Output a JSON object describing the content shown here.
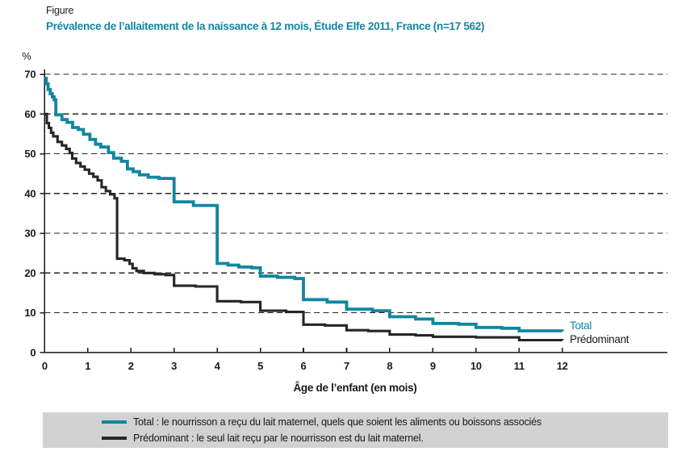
{
  "page": {
    "figure_label": "Figure",
    "title": "Prévalence de l’allaitement de la naissance à 12 mois, Étude Elfe 2011, France (n=17 562)"
  },
  "colors": {
    "accent": "#1186a1",
    "line_dark": "#262626",
    "grid": "#262626",
    "axis": "#1a1a1a",
    "legend_bg": "#d2d2d2"
  },
  "chart_data": {
    "type": "line",
    "step": "after",
    "title": "Prévalence de l’allaitement de la naissance à 12 mois, Étude Elfe 2011, France (n=17 562)",
    "xlabel": "Âge de l’enfant (en mois)",
    "ylabel": "%",
    "xlim": [
      0,
      12.4
    ],
    "ylim": [
      0,
      70
    ],
    "x_ticks": [
      0,
      1,
      2,
      3,
      4,
      5,
      6,
      7,
      8,
      9,
      10,
      11,
      12
    ],
    "y_ticks": [
      0,
      10,
      20,
      30,
      40,
      50,
      60,
      70
    ],
    "grid": "horizontal-dashed",
    "legend_position": "bottom-box",
    "series": [
      {
        "name": "Total",
        "color": "#1186a1",
        "width": 3.8,
        "points": [
          [
            0,
            69
          ],
          [
            0.04,
            67.6
          ],
          [
            0.08,
            66.2
          ],
          [
            0.13,
            65.1
          ],
          [
            0.18,
            64.3
          ],
          [
            0.22,
            63.6
          ],
          [
            0.26,
            59.8
          ],
          [
            0.4,
            58.6
          ],
          [
            0.52,
            57.9
          ],
          [
            0.65,
            56.6
          ],
          [
            0.78,
            56.1
          ],
          [
            0.9,
            54.9
          ],
          [
            1.05,
            53.6
          ],
          [
            1.18,
            52.4
          ],
          [
            1.3,
            51.7
          ],
          [
            1.48,
            50.3
          ],
          [
            1.6,
            48.9
          ],
          [
            1.78,
            48.1
          ],
          [
            1.92,
            46.2
          ],
          [
            2.05,
            45.5
          ],
          [
            2.2,
            44.7
          ],
          [
            2.4,
            44.1
          ],
          [
            2.65,
            43.8
          ],
          [
            3,
            37.9
          ],
          [
            3.45,
            37
          ],
          [
            4,
            22.4
          ],
          [
            4.25,
            22
          ],
          [
            4.5,
            21.5
          ],
          [
            4.8,
            21.3
          ],
          [
            5,
            19.2
          ],
          [
            5.4,
            18.9
          ],
          [
            5.8,
            18.6
          ],
          [
            6,
            13.3
          ],
          [
            6.55,
            12.7
          ],
          [
            7,
            10.9
          ],
          [
            7.6,
            10.5
          ],
          [
            8,
            9
          ],
          [
            8.6,
            8.4
          ],
          [
            9,
            7.3
          ],
          [
            9.6,
            7.1
          ],
          [
            10,
            6.3
          ],
          [
            10.6,
            6.1
          ],
          [
            11,
            5.45
          ],
          [
            12,
            5.35
          ]
        ]
      },
      {
        "name": "Prédominant",
        "color": "#262626",
        "width": 3.1,
        "points": [
          [
            0,
            60
          ],
          [
            0.05,
            57.7
          ],
          [
            0.1,
            56.5
          ],
          [
            0.15,
            55.3
          ],
          [
            0.2,
            54.4
          ],
          [
            0.3,
            53
          ],
          [
            0.4,
            52.1
          ],
          [
            0.5,
            51.2
          ],
          [
            0.58,
            50.2
          ],
          [
            0.64,
            48.8
          ],
          [
            0.73,
            47.7
          ],
          [
            0.83,
            46.8
          ],
          [
            0.93,
            46
          ],
          [
            1.03,
            45
          ],
          [
            1.13,
            44.2
          ],
          [
            1.23,
            43.3
          ],
          [
            1.32,
            41.6
          ],
          [
            1.42,
            40.6
          ],
          [
            1.52,
            39.8
          ],
          [
            1.62,
            38.8
          ],
          [
            1.68,
            23.6
          ],
          [
            1.85,
            23.2
          ],
          [
            1.97,
            22.3
          ],
          [
            2.04,
            21.2
          ],
          [
            2.13,
            20.5
          ],
          [
            2.3,
            20
          ],
          [
            2.55,
            19.7
          ],
          [
            2.8,
            19.5
          ],
          [
            3,
            16.8
          ],
          [
            3.5,
            16.6
          ],
          [
            4,
            12.9
          ],
          [
            4.55,
            12.7
          ],
          [
            5,
            10.5
          ],
          [
            5.6,
            10.2
          ],
          [
            6,
            7
          ],
          [
            6.5,
            6.8
          ],
          [
            7,
            5.6
          ],
          [
            7.5,
            5.4
          ],
          [
            8,
            4.5
          ],
          [
            8.6,
            4.3
          ],
          [
            9,
            3.95
          ],
          [
            10,
            3.8
          ],
          [
            11,
            3.1
          ],
          [
            12,
            3.05
          ]
        ]
      }
    ]
  },
  "end_labels": {
    "total": "Total",
    "predominant": "Prédominant"
  },
  "legend": {
    "items": [
      {
        "label": "Total : le nourrisson a reçu du lait maternel, quels que soient les aliments ou boissons associés",
        "color": "#1186a1"
      },
      {
        "label": "Prédominant : le seul lait reçu par le nourrisson est du lait maternel.",
        "color": "#262626"
      }
    ]
  }
}
